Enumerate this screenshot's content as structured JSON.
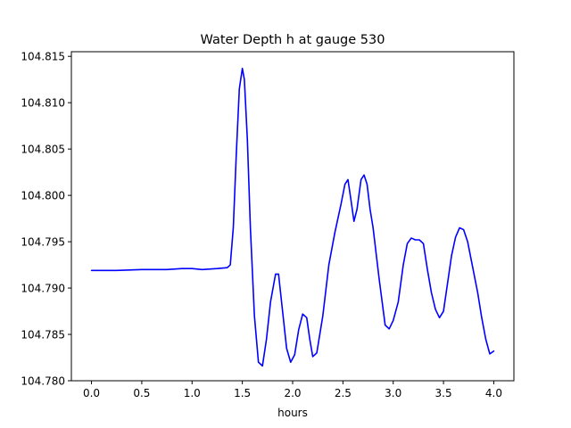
{
  "chart_data": {
    "type": "line",
    "title": "Water Depth h at gauge 530",
    "xlabel": "hours",
    "ylabel": "",
    "xlim": [
      -0.2,
      4.2
    ],
    "ylim": [
      104.78,
      104.8155
    ],
    "x_ticks": [
      0.0,
      0.5,
      1.0,
      1.5,
      2.0,
      2.5,
      3.0,
      3.5,
      4.0
    ],
    "x_tick_labels": [
      "0.0",
      "0.5",
      "1.0",
      "1.5",
      "2.0",
      "2.5",
      "3.0",
      "3.5",
      "4.0"
    ],
    "y_ticks": [
      104.78,
      104.785,
      104.79,
      104.795,
      104.8,
      104.805,
      104.81,
      104.815
    ],
    "y_tick_labels": [
      "104.780",
      "104.785",
      "104.790",
      "104.795",
      "104.800",
      "104.805",
      "104.810",
      "104.815"
    ],
    "grid": false,
    "series": [
      {
        "color": "#0000ff",
        "x": [
          0.0,
          0.25,
          0.5,
          0.75,
          0.9,
          1.0,
          1.1,
          1.25,
          1.35,
          1.38,
          1.41,
          1.44,
          1.47,
          1.5,
          1.52,
          1.55,
          1.58,
          1.62,
          1.66,
          1.7,
          1.74,
          1.78,
          1.83,
          1.86,
          1.9,
          1.94,
          1.98,
          2.02,
          2.06,
          2.1,
          2.14,
          2.17,
          2.2,
          2.24,
          2.3,
          2.36,
          2.42,
          2.48,
          2.52,
          2.55,
          2.58,
          2.61,
          2.64,
          2.68,
          2.71,
          2.74,
          2.77,
          2.8,
          2.86,
          2.92,
          2.96,
          3.0,
          3.05,
          3.1,
          3.14,
          3.18,
          3.22,
          3.26,
          3.3,
          3.34,
          3.38,
          3.42,
          3.46,
          3.5,
          3.54,
          3.58,
          3.62,
          3.66,
          3.7,
          3.74,
          3.78,
          3.84,
          3.88,
          3.92,
          3.96,
          4.0
        ],
        "y": [
          104.7919,
          104.7919,
          104.792,
          104.792,
          104.7921,
          104.7921,
          104.792,
          104.7921,
          104.7922,
          104.7925,
          104.7965,
          104.8045,
          104.8115,
          104.8137,
          104.8125,
          104.806,
          104.7965,
          104.787,
          104.782,
          104.7816,
          104.7845,
          104.7885,
          104.7915,
          104.7915,
          104.7875,
          104.7835,
          104.782,
          104.7828,
          104.7855,
          104.7872,
          104.7868,
          104.7845,
          104.7826,
          104.783,
          104.787,
          104.7925,
          104.796,
          104.799,
          104.8012,
          104.8017,
          104.7995,
          104.7972,
          104.7985,
          104.8017,
          104.8022,
          104.8012,
          104.7985,
          104.7965,
          104.791,
          104.786,
          104.7856,
          104.7865,
          104.7885,
          104.7925,
          104.7948,
          104.7954,
          104.7952,
          104.7952,
          104.7948,
          104.792,
          104.7895,
          104.7877,
          104.7868,
          104.7875,
          104.7905,
          104.7935,
          104.7955,
          104.7965,
          104.7963,
          104.795,
          104.7928,
          104.7895,
          104.7868,
          104.7845,
          104.7829,
          104.7832
        ]
      }
    ]
  }
}
